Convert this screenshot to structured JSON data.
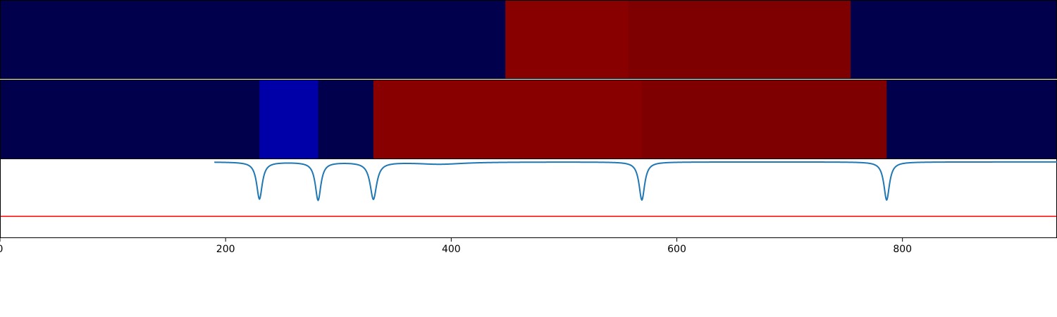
{
  "chart_data": [
    {
      "type": "heatmap",
      "title": "",
      "x_range": [
        0,
        937
      ],
      "segments": [
        {
          "start": 0,
          "end": 448,
          "color": "#00004c"
        },
        {
          "start": 448,
          "end": 557,
          "color": "#880000"
        },
        {
          "start": 557,
          "end": 754,
          "color": "#7f0000"
        },
        {
          "start": 754,
          "end": 937,
          "color": "#00004c"
        }
      ]
    },
    {
      "type": "heatmap",
      "title": "",
      "x_range": [
        0,
        937
      ],
      "segments": [
        {
          "start": 0,
          "end": 230,
          "color": "#00004c"
        },
        {
          "start": 230,
          "end": 282,
          "color": "#0000a8"
        },
        {
          "start": 282,
          "end": 331,
          "color": "#00004c"
        },
        {
          "start": 331,
          "end": 569,
          "color": "#880000"
        },
        {
          "start": 569,
          "end": 786,
          "color": "#7f0000"
        },
        {
          "start": 786,
          "end": 937,
          "color": "#00004c"
        }
      ]
    },
    {
      "type": "line",
      "title": "",
      "xlabel": "",
      "ylabel": "",
      "xlim": [
        0,
        937
      ],
      "ylim": [
        -1.4,
        0.05
      ],
      "grid": false,
      "xticks": [
        0,
        200,
        400,
        600,
        800
      ],
      "xtick_labels": [
        "0",
        "200",
        "400",
        "600",
        "800"
      ],
      "series": [
        {
          "color": "#1f77b4",
          "baseline": 0,
          "noise_from": 190,
          "dips": [
            {
              "x": 230,
              "depth": 0.68,
              "width": 3
            },
            {
              "x": 282,
              "depth": 0.7,
              "width": 3
            },
            {
              "x": 331,
              "depth": 0.68,
              "width": 3.5
            },
            {
              "x": 390,
              "depth": 0.04,
              "width": 25
            },
            {
              "x": 569,
              "depth": 0.7,
              "width": 3
            },
            {
              "x": 786,
              "depth": 0.7,
              "width": 3
            }
          ]
        }
      ],
      "threshold": {
        "value": -1.0,
        "color": "#ff0000"
      }
    }
  ]
}
